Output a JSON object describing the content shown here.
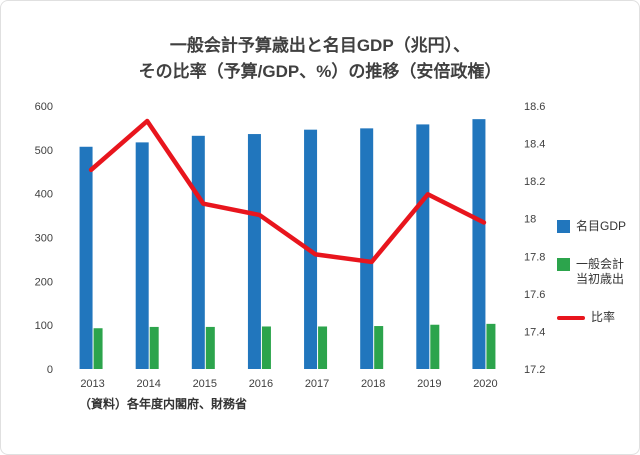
{
  "title": {
    "line1": "一般会計予算歳出と名目GDP（兆円）、",
    "line2": "その比率（予算/GDP、%）の推移（安倍政権）"
  },
  "source": "（資料）各年度内閣府、財務省",
  "legend": [
    {
      "label": "名目GDP",
      "swatch": "square",
      "color": "#2176bd"
    },
    {
      "label": "一般会計\n当初歳出",
      "swatch": "square",
      "color": "#2ca44c"
    },
    {
      "label": "比率",
      "swatch": "line",
      "color": "#e8151d"
    }
  ],
  "chart_data": {
    "type": "bar",
    "title": "一般会計予算歳出と名目GDP（兆円）、その比率（予算/GDP、%）の推移（安倍政権）",
    "categories": [
      "2013",
      "2014",
      "2015",
      "2016",
      "2017",
      "2018",
      "2019",
      "2020"
    ],
    "series": [
      {
        "name": "名目GDP",
        "type": "bar",
        "axis": "left",
        "color": "#2176bd",
        "values": [
          507,
          517,
          532,
          536,
          546,
          549,
          558,
          570
        ]
      },
      {
        "name": "一般会計当初歳出",
        "type": "bar",
        "axis": "left",
        "color": "#2ca44c",
        "values": [
          93,
          96,
          96,
          97,
          97,
          98,
          101,
          103
        ]
      },
      {
        "name": "比率",
        "type": "line",
        "axis": "right",
        "color": "#e8151d",
        "values": [
          18.26,
          18.52,
          18.08,
          18.02,
          17.81,
          17.77,
          18.13,
          17.98
        ]
      }
    ],
    "left_axis": {
      "min": 0,
      "max": 600,
      "ticks": [
        "0",
        "100",
        "200",
        "300",
        "400",
        "500",
        "600"
      ]
    },
    "right_axis": {
      "min": 17.2,
      "max": 18.6,
      "ticks": [
        "17.2",
        "17.4",
        "17.6",
        "17.8",
        "18",
        "18.2",
        "18.4",
        "18.6"
      ]
    },
    "grid": false,
    "legend_position": "right",
    "source": "（資料）各年度内閣府、財務省"
  }
}
